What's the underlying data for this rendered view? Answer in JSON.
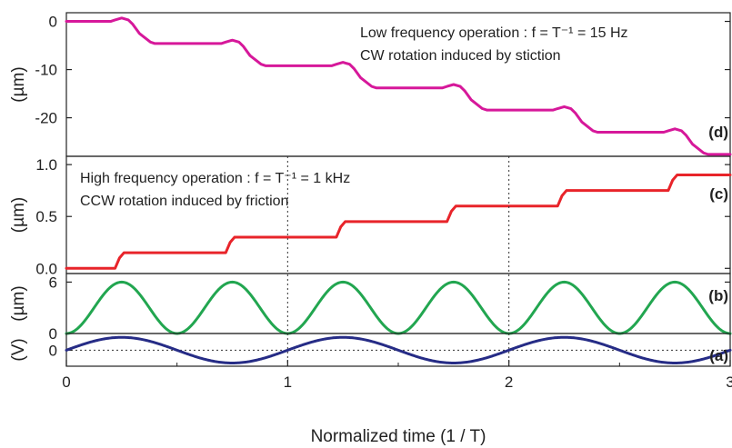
{
  "chart_data": {
    "type": "line",
    "xlabel": "Normalized time (1 / T)",
    "xlim": [
      0,
      3
    ],
    "x_ticks": [
      "0",
      "1",
      "2",
      "3"
    ],
    "grid": false,
    "legend": "none",
    "panels": [
      {
        "id": "d",
        "label": "(d)",
        "ylabel": "(µm)",
        "ylim": [
          -28,
          1.8
        ],
        "y_ticks": [
          {
            "v": 0,
            "t": "0"
          },
          {
            "v": -10,
            "t": "-10"
          },
          {
            "v": -20,
            "t": "-20"
          }
        ],
        "annotations": [
          "Low frequency operation : f = T⁻¹ = 15 Hz",
          "CW rotation induced by stiction"
        ],
        "color": "#d6189a",
        "series": {
          "x": [
            0,
            0.2,
            0.22,
            0.25,
            0.28,
            0.3,
            0.33,
            0.38,
            0.4,
            0.7,
            0.72,
            0.75,
            0.78,
            0.8,
            0.83,
            0.88,
            0.9,
            1.2,
            1.22,
            1.25,
            1.28,
            1.3,
            1.33,
            1.38,
            1.4,
            1.7,
            1.72,
            1.75,
            1.78,
            1.8,
            1.83,
            1.88,
            1.9,
            2.2,
            2.22,
            2.25,
            2.28,
            2.3,
            2.33,
            2.38,
            2.4,
            2.7,
            2.72,
            2.75,
            2.78,
            2.8,
            2.83,
            2.88,
            2.9,
            3.0
          ],
          "y": [
            0,
            0,
            0.3,
            0.7,
            0.3,
            -0.6,
            -2.5,
            -4.3,
            -4.6,
            -4.6,
            -4.3,
            -3.9,
            -4.3,
            -5.2,
            -7.1,
            -8.9,
            -9.2,
            -9.2,
            -8.9,
            -8.5,
            -8.9,
            -9.8,
            -11.7,
            -13.5,
            -13.8,
            -13.8,
            -13.5,
            -13.1,
            -13.5,
            -14.4,
            -16.3,
            -18.1,
            -18.4,
            -18.4,
            -18.1,
            -17.7,
            -18.1,
            -19.0,
            -20.9,
            -22.7,
            -23.0,
            -23.0,
            -22.7,
            -22.3,
            -22.7,
            -23.6,
            -25.5,
            -27.3,
            -27.6,
            -27.6
          ]
        }
      },
      {
        "id": "c",
        "label": "(c)",
        "ylabel": "(µm)",
        "ylim": [
          -0.05,
          1.08
        ],
        "y_ticks": [
          {
            "v": 0,
            "t": "0.0"
          },
          {
            "v": 0.5,
            "t": "0.5"
          },
          {
            "v": 1,
            "t": "1.0"
          }
        ],
        "annotations": [
          "High frequency operation : f = T⁻¹ = 1 kHz",
          "CCW rotation induced by friction"
        ],
        "color": "#e8242a",
        "series": {
          "x": [
            0,
            0.22,
            0.24,
            0.26,
            0.72,
            0.74,
            0.76,
            1.22,
            1.24,
            1.26,
            1.72,
            1.74,
            1.76,
            2.22,
            2.24,
            2.26,
            2.72,
            2.74,
            2.76,
            3.0
          ],
          "y": [
            0,
            0,
            0.1,
            0.15,
            0.15,
            0.25,
            0.3,
            0.3,
            0.4,
            0.45,
            0.45,
            0.55,
            0.6,
            0.6,
            0.7,
            0.75,
            0.75,
            0.85,
            0.9,
            0.9
          ]
        }
      },
      {
        "id": "b",
        "label": "(b)",
        "ylabel": "(µm)",
        "ylim": [
          0,
          7
        ],
        "y_ticks": [
          {
            "v": 0,
            "t": "0"
          },
          {
            "v": 6,
            "t": "6"
          }
        ],
        "annotations": [],
        "color": "#22a650",
        "function": "3*(1 - cos(4*pi*x))"
      },
      {
        "id": "a",
        "label": "(a)",
        "ylabel": "(V)",
        "ylim": [
          -1.25,
          1.3
        ],
        "y_ticks": [
          {
            "v": 0,
            "t": "0"
          }
        ],
        "annotations": [],
        "color": "#262c86",
        "function": "sin(2*pi*x)",
        "reference_lines": {
          "y": [
            0
          ],
          "x": [
            1,
            2
          ]
        }
      }
    ]
  }
}
